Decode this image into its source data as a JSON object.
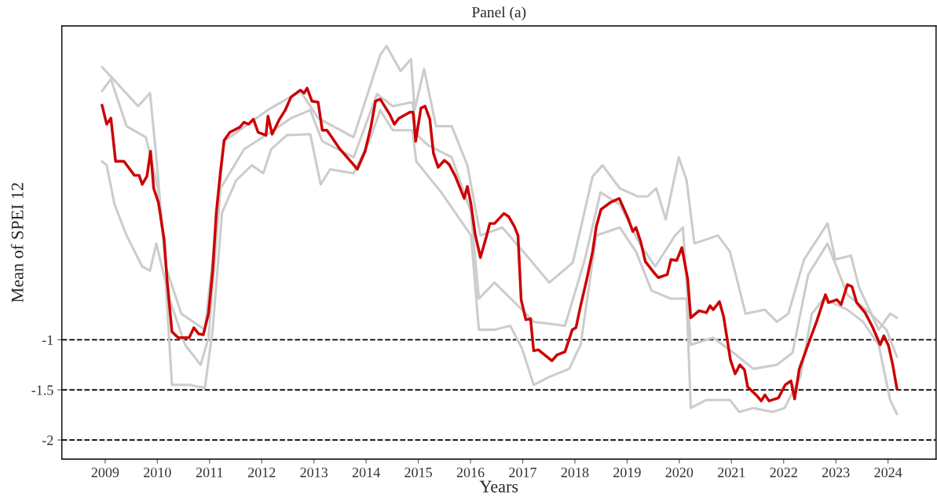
{
  "chart_data": {
    "type": "line",
    "title": "Panel (a)",
    "xlabel": "Years",
    "ylabel": "Mean of SPEI 12",
    "xlim": [
      2008.17,
      2024.92
    ],
    "xticks": [
      2009,
      2010,
      2011,
      2012,
      2013,
      2014,
      2015,
      2016,
      2017,
      2018,
      2019,
      2020,
      2021,
      2022,
      2023,
      2024
    ],
    "ylim": [
      -2.19,
      2.13
    ],
    "yticks": [
      -2,
      -1.5,
      -1
    ],
    "grid": false,
    "line_style": "solid",
    "marker": "none",
    "ref_lines": [
      {
        "axis": "y",
        "value": -1,
        "color": "#000000",
        "line_style": "dashed"
      },
      {
        "axis": "y",
        "value": -1.5,
        "color": "#000000",
        "line_style": "dashed"
      },
      {
        "axis": "y",
        "value": -2,
        "color": "#000000",
        "line_style": "dashed"
      }
    ],
    "series": [
      {
        "color": "#cccccc",
        "x": [
          2008.94,
          2009.12,
          2009.63,
          2009.86,
          2009.98,
          2010.16,
          2010.46,
          2010.91,
          2011.06,
          2011.28,
          2012.11,
          2012.74,
          2013.08,
          2013.76,
          2014.27,
          2014.39,
          2014.66,
          2014.86,
          2014.93,
          2015.11,
          2015.34,
          2015.64,
          2015.94,
          2016.19,
          2016.61,
          2017.14,
          2017.51,
          2017.96,
          2018.34,
          2018.53,
          2018.86,
          2019.2,
          2019.39,
          2019.56,
          2019.74,
          2019.99,
          2020.14,
          2020.29,
          2020.74,
          2020.97,
          2021.27,
          2021.64,
          2021.87,
          2022.09,
          2022.39,
          2022.84,
          2022.99,
          2023.29,
          2023.44,
          2023.82,
          2024.04,
          2024.17
        ],
        "values": [
          1.72,
          1.62,
          1.33,
          1.46,
          0.82,
          -0.27,
          -0.74,
          -0.9,
          -0.2,
          0.98,
          1.29,
          1.48,
          1.21,
          1.02,
          1.84,
          1.93,
          1.68,
          1.8,
          1.29,
          1.7,
          1.13,
          1.13,
          0.74,
          0.04,
          0.12,
          -0.2,
          -0.43,
          -0.23,
          0.63,
          0.74,
          0.51,
          0.43,
          0.43,
          0.51,
          0.2,
          0.82,
          0.59,
          -0.04,
          0.04,
          -0.12,
          -0.74,
          -0.7,
          -0.82,
          -0.74,
          -0.2,
          0.16,
          -0.2,
          -0.16,
          -0.47,
          -0.9,
          -0.74,
          -0.78
        ]
      },
      {
        "color": "#cccccc",
        "x": [
          2008.94,
          2009.03,
          2009.18,
          2009.41,
          2009.71,
          2009.86,
          2009.98,
          2010.16,
          2010.28,
          2010.61,
          2010.91,
          2011.06,
          2011.24,
          2011.51,
          2011.81,
          2012.03,
          2012.18,
          2012.48,
          2012.93,
          2013.13,
          2013.31,
          2013.76,
          2014.06,
          2014.27,
          2014.51,
          2014.89,
          2014.96,
          2015.19,
          2015.44,
          2016.01,
          2016.16,
          2016.46,
          2016.76,
          2016.99,
          2017.21,
          2017.51,
          2017.89,
          2018.11,
          2018.41,
          2018.86,
          2019.17,
          2019.47,
          2019.84,
          2020.14,
          2020.22,
          2020.52,
          2020.97,
          2021.15,
          2021.42,
          2021.79,
          2022.02,
          2022.32,
          2022.54,
          2022.77,
          2023.22,
          2023.52,
          2023.82,
          2024.04,
          2024.17
        ],
        "values": [
          0.78,
          0.74,
          0.35,
          0.04,
          -0.27,
          -0.31,
          -0.04,
          -0.43,
          -1.45,
          -1.45,
          -1.48,
          -0.9,
          0.27,
          0.59,
          0.74,
          0.66,
          0.9,
          1.04,
          1.05,
          0.55,
          0.7,
          0.66,
          0.98,
          1.29,
          1.09,
          1.09,
          0.78,
          0.63,
          0.47,
          0.04,
          -0.9,
          -0.9,
          -0.86,
          -1.09,
          -1.45,
          -1.37,
          -1.29,
          -1.05,
          0.04,
          0.12,
          -0.12,
          -0.51,
          -0.59,
          -0.59,
          -1.68,
          -1.6,
          -1.6,
          -1.72,
          -1.68,
          -1.72,
          -1.68,
          -1.37,
          -0.74,
          -0.59,
          -0.7,
          -0.82,
          -1.05,
          -1.6,
          -1.74
        ]
      },
      {
        "color": "#cccccc",
        "x": [
          2008.94,
          2009.11,
          2009.41,
          2009.78,
          2010.01,
          2010.23,
          2010.53,
          2010.83,
          2010.98,
          2011.21,
          2011.66,
          2012.11,
          2012.56,
          2012.93,
          2013.16,
          2013.76,
          2014.21,
          2014.51,
          2014.89,
          2014.96,
          2015.19,
          2015.64,
          2016.01,
          2016.16,
          2016.46,
          2016.91,
          2017.21,
          2017.81,
          2018.19,
          2018.49,
          2018.86,
          2019.24,
          2019.54,
          2019.92,
          2020.07,
          2020.22,
          2020.65,
          2021.04,
          2021.42,
          2021.87,
          2022.17,
          2022.47,
          2022.84,
          2023.22,
          2023.67,
          2023.97,
          2024.17
        ],
        "values": [
          1.48,
          1.6,
          1.13,
          1.02,
          0.51,
          -0.59,
          -1.05,
          -1.25,
          -0.98,
          0.51,
          0.9,
          1.05,
          1.21,
          1.29,
          0.98,
          0.82,
          1.45,
          1.33,
          1.37,
          1.05,
          0.94,
          0.82,
          0.27,
          -0.59,
          -0.43,
          -0.66,
          -0.82,
          -0.86,
          -0.2,
          0.47,
          0.35,
          -0.04,
          -0.27,
          0.04,
          0.12,
          -1.05,
          -0.98,
          -1.13,
          -1.29,
          -1.25,
          -1.13,
          -0.35,
          -0.04,
          -0.55,
          -0.74,
          -0.9,
          -1.17
        ]
      },
      {
        "color": "#cc0000",
        "x": [
          2008.94,
          2009.03,
          2009.11,
          2009.2,
          2009.36,
          2009.56,
          2009.65,
          2009.71,
          2009.8,
          2009.87,
          2009.93,
          2010.02,
          2010.13,
          2010.19,
          2010.28,
          2010.4,
          2010.61,
          2010.7,
          2010.79,
          2010.88,
          2010.98,
          2011.06,
          2011.13,
          2011.21,
          2011.28,
          2011.39,
          2011.58,
          2011.66,
          2011.75,
          2011.84,
          2011.93,
          2012.08,
          2012.12,
          2012.2,
          2012.33,
          2012.45,
          2012.56,
          2012.74,
          2012.81,
          2012.87,
          2012.96,
          2013.08,
          2013.16,
          2013.25,
          2013.5,
          2013.77,
          2013.83,
          2013.98,
          2014.09,
          2014.18,
          2014.27,
          2014.45,
          2014.54,
          2014.63,
          2014.84,
          2014.9,
          2014.95,
          2015.05,
          2015.13,
          2015.22,
          2015.29,
          2015.38,
          2015.5,
          2015.59,
          2015.71,
          2015.88,
          2015.94,
          2016.01,
          2016.09,
          2016.19,
          2016.31,
          2016.37,
          2016.46,
          2016.64,
          2016.73,
          2016.84,
          2016.91,
          2016.97,
          2017.06,
          2017.15,
          2017.21,
          2017.3,
          2017.56,
          2017.66,
          2017.81,
          2017.95,
          2018.02,
          2018.11,
          2018.23,
          2018.34,
          2018.41,
          2018.5,
          2018.68,
          2018.85,
          2019.02,
          2019.11,
          2019.17,
          2019.26,
          2019.35,
          2019.53,
          2019.6,
          2019.77,
          2019.84,
          2019.95,
          2020.05,
          2020.16,
          2020.22,
          2020.38,
          2020.52,
          2020.59,
          2020.65,
          2020.77,
          2020.85,
          2020.98,
          2021.07,
          2021.16,
          2021.25,
          2021.31,
          2021.49,
          2021.57,
          2021.64,
          2021.72,
          2021.9,
          2022.03,
          2022.14,
          2022.21,
          2022.3,
          2022.53,
          2022.63,
          2022.8,
          2022.86,
          2023.02,
          2023.1,
          2023.22,
          2023.31,
          2023.4,
          2023.56,
          2023.7,
          2023.85,
          2023.92,
          2024.01,
          2024.09,
          2024.17
        ],
        "values": [
          1.34,
          1.15,
          1.21,
          0.78,
          0.78,
          0.64,
          0.64,
          0.55,
          0.63,
          0.88,
          0.51,
          0.37,
          0.0,
          -0.43,
          -0.92,
          -0.98,
          -0.98,
          -0.88,
          -0.94,
          -0.95,
          -0.74,
          -0.31,
          0.27,
          0.68,
          0.99,
          1.07,
          1.12,
          1.17,
          1.15,
          1.2,
          1.07,
          1.04,
          1.23,
          1.05,
          1.19,
          1.29,
          1.42,
          1.49,
          1.46,
          1.51,
          1.38,
          1.37,
          1.09,
          1.09,
          0.9,
          0.74,
          0.7,
          0.88,
          1.12,
          1.38,
          1.4,
          1.25,
          1.15,
          1.21,
          1.27,
          1.27,
          0.98,
          1.31,
          1.33,
          1.2,
          0.86,
          0.72,
          0.79,
          0.75,
          0.63,
          0.41,
          0.53,
          0.35,
          0.05,
          -0.18,
          0.04,
          0.16,
          0.16,
          0.26,
          0.23,
          0.13,
          0.04,
          -0.6,
          -0.8,
          -0.79,
          -1.11,
          -1.1,
          -1.21,
          -1.15,
          -1.12,
          -0.9,
          -0.88,
          -0.66,
          -0.39,
          -0.12,
          0.13,
          0.3,
          0.37,
          0.41,
          0.21,
          0.08,
          0.12,
          -0.02,
          -0.22,
          -0.34,
          -0.38,
          -0.35,
          -0.2,
          -0.21,
          -0.08,
          -0.39,
          -0.78,
          -0.71,
          -0.73,
          -0.66,
          -0.7,
          -0.62,
          -0.77,
          -1.2,
          -1.34,
          -1.25,
          -1.3,
          -1.47,
          -1.56,
          -1.61,
          -1.55,
          -1.61,
          -1.58,
          -1.45,
          -1.41,
          -1.59,
          -1.29,
          -0.96,
          -0.82,
          -0.55,
          -0.63,
          -0.6,
          -0.65,
          -0.45,
          -0.47,
          -0.63,
          -0.73,
          -0.87,
          -1.05,
          -0.96,
          -1.06,
          -1.25,
          -1.49
        ]
      }
    ]
  }
}
